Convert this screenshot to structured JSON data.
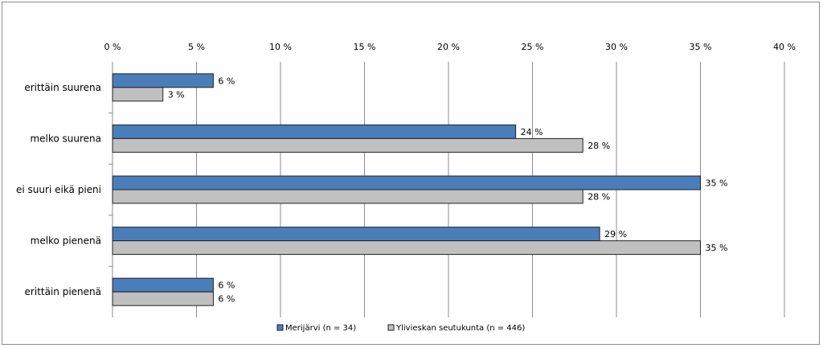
{
  "chart_data": {
    "type": "bar",
    "orientation": "horizontal",
    "categories": [
      "erittäin suurena",
      "melko suurena",
      "ei suuri eikä pieni",
      "melko pienenä",
      "erittäin pienenä"
    ],
    "series": [
      {
        "name": "Merijärvi  (n = 34)",
        "values": [
          6,
          24,
          35,
          29,
          6
        ],
        "labels": [
          "6 %",
          "24 %",
          "35 %",
          "29 %",
          "6 %"
        ],
        "color": "#4a7ebb"
      },
      {
        "name": "Ylivieskan seutukunta  (n = 446)",
        "values": [
          3,
          28,
          28,
          35,
          6
        ],
        "labels": [
          "3 %",
          "28 %",
          "28 %",
          "35 %",
          "6 %"
        ],
        "color": "#c0c0c0"
      }
    ],
    "x_ticks": [
      "0 %",
      "5 %",
      "10 %",
      "15 %",
      "20 %",
      "25 %",
      "30 %",
      "35 %",
      "40 %"
    ],
    "xlim": [
      0,
      40
    ],
    "xaxis_position": "top",
    "grid": true,
    "legend_position": "bottom"
  }
}
